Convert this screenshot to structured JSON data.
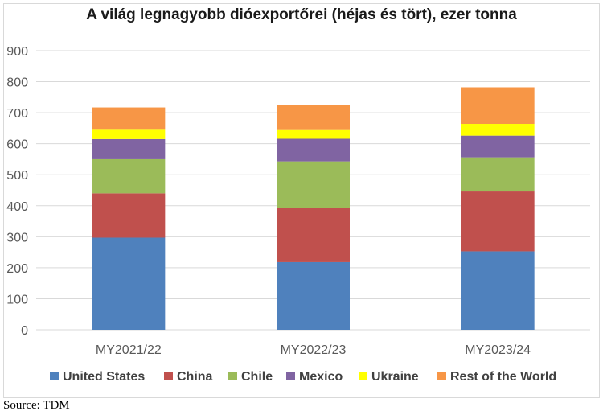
{
  "chart_data": {
    "type": "bar",
    "stacked": true,
    "title": "A világ legnagyobb dióexportőrei (héjas és tört), ezer tonna",
    "categories": [
      "MY2021/22",
      "MY2022/23",
      "MY2023/24"
    ],
    "series": [
      {
        "name": "United States",
        "color": "#4f81bd",
        "values": [
          297,
          218,
          253
        ]
      },
      {
        "name": "China",
        "color": "#c0504d",
        "values": [
          143,
          174,
          193
        ]
      },
      {
        "name": "Chile",
        "color": "#9bbb59",
        "values": [
          110,
          151,
          110
        ]
      },
      {
        "name": "Mexico",
        "color": "#8064a2",
        "values": [
          65,
          73,
          70
        ]
      },
      {
        "name": "Ukraine",
        "color": "#ffff00",
        "values": [
          30,
          28,
          38
        ]
      },
      {
        "name": "Rest of the World",
        "color": "#f79646",
        "values": [
          72,
          82,
          118
        ]
      }
    ],
    "yticks": [
      0,
      100,
      200,
      300,
      400,
      500,
      600,
      700,
      800,
      900
    ],
    "ylim": [
      0,
      900
    ],
    "grid": true,
    "legend_position": "bottom"
  },
  "source": "Source: TDM"
}
